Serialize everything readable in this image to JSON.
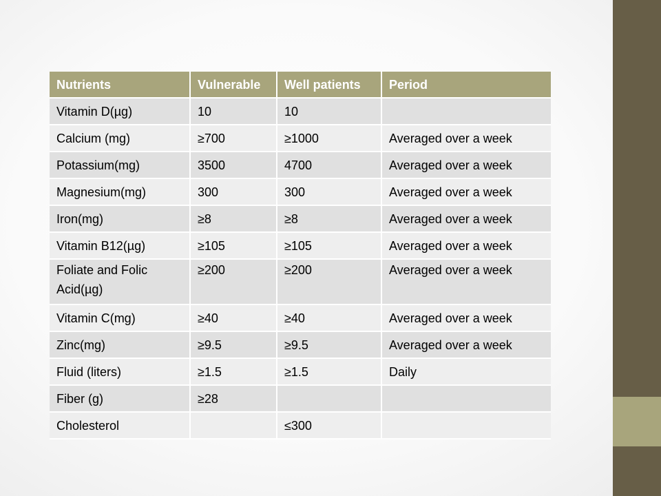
{
  "table": {
    "headers": [
      "Nutrients",
      "Vulnerable",
      "Well patients",
      "Period"
    ],
    "rows": [
      [
        "Vitamin D(µg)",
        "10",
        "10",
        ""
      ],
      [
        "Calcium (mg)",
        "≥700",
        "≥1000",
        "Averaged over a week"
      ],
      [
        "Potassium(mg)",
        "3500",
        "4700",
        "Averaged over a week"
      ],
      [
        "Magnesium(mg)",
        "300",
        "300",
        "Averaged over a week"
      ],
      [
        "Iron(mg)",
        "≥8",
        "≥8",
        "Averaged over a week"
      ],
      [
        "Vitamin B12(µg)",
        "≥105",
        "≥105",
        "Averaged over a week"
      ],
      [
        "Foliate and Folic Acid(µg)",
        "≥200",
        "≥200",
        "Averaged over a week"
      ],
      [
        "Vitamin C(mg)",
        "≥40",
        "≥40",
        "Averaged over a week"
      ],
      [
        "Zinc(mg)",
        "≥9.5",
        "≥9.5",
        "Averaged over a week"
      ],
      [
        "Fluid (liters)",
        "≥1.5",
        "≥1.5",
        "Daily"
      ],
      [
        "Fiber (g)",
        "≥28",
        "",
        ""
      ],
      [
        "Cholesterol",
        "",
        "≤300",
        ""
      ]
    ]
  },
  "colors": {
    "header_bg": "#a8a57c",
    "row_dark": "#e0e0e0",
    "row_light": "#eeeeee",
    "side_bar": "#675e47",
    "side_accent": "#a8a57c"
  }
}
